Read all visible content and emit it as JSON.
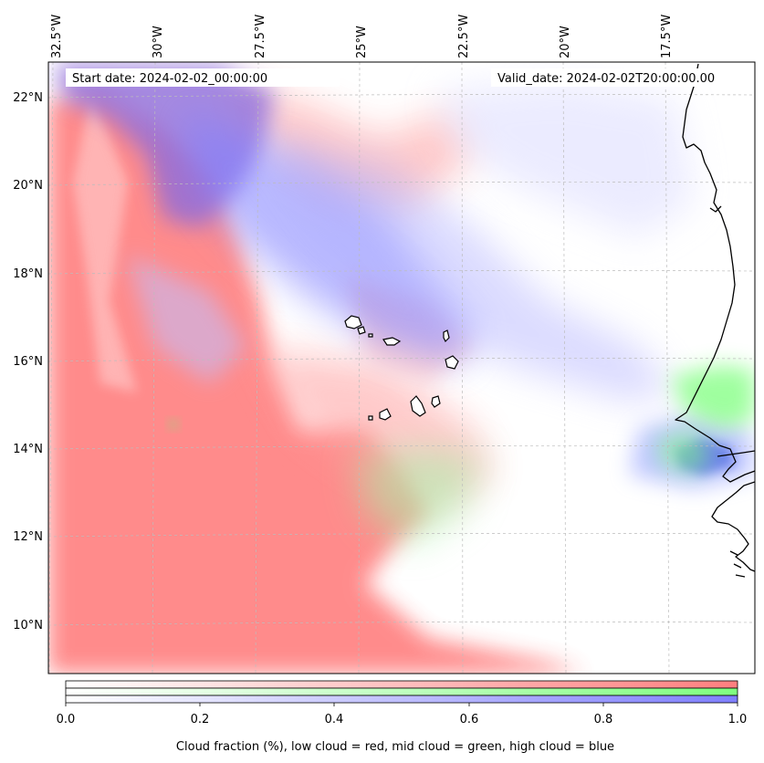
{
  "map": {
    "start_date_label": "Start date: 2024-02-02_00:00:00",
    "valid_date_label": "Valid_date: 2024-02-02T20:00:00.00",
    "longitude_labels": [
      "32.5°W",
      "30°W",
      "27.5°W",
      "25°W",
      "22.5°W",
      "20°W",
      "17.5°W"
    ],
    "latitude_labels": [
      "22°N",
      "20°N",
      "18°N",
      "16°N",
      "14°N",
      "12°N",
      "10°N"
    ]
  },
  "colorbar": {
    "ticks": [
      "0.0",
      "0.2",
      "0.4",
      "0.6",
      "0.8",
      "1.0"
    ],
    "caption": "Cloud fraction (%), low cloud = red, mid cloud = green, high cloud = blue",
    "low_color": "#ff7f7f",
    "mid_color": "#7fff7f",
    "high_color": "#7f7fff"
  },
  "layers": [
    {
      "name": "low cloud",
      "color": "#ff7f7f"
    },
    {
      "name": "mid cloud",
      "color": "#7fff7f"
    },
    {
      "name": "high cloud",
      "color": "#7f7fff"
    }
  ]
}
